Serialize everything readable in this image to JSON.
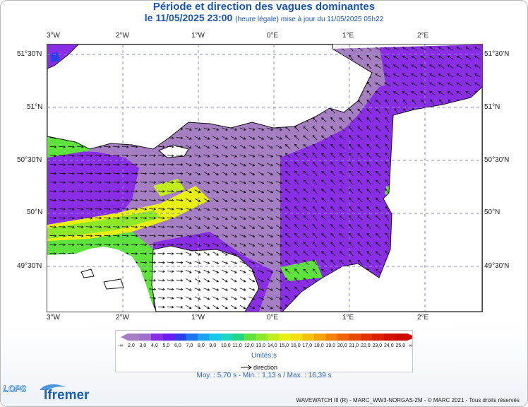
{
  "header": {
    "title": "Période et direction des vagues dominantes",
    "date": "le 11/05/2025 23:00",
    "note": "(heure légale) mise à jour du 11/05/2025 05h22"
  },
  "axes": {
    "lon_labels": [
      "3°W",
      "2°W",
      "1°W",
      "0°E",
      "1°E",
      "2°E"
    ],
    "lat_labels": [
      "51°30'N",
      "51°N",
      "50°30'N",
      "50°N",
      "49°30'N"
    ]
  },
  "legend": {
    "values": [
      "2,0",
      "3,0",
      "4,0",
      "5,0",
      "6,0",
      "7,0",
      "8,0",
      "9,0",
      "10,0",
      "11,0",
      "12,0",
      "13,0",
      "14,0",
      "15,0",
      "16,0",
      "17,0",
      "18,0",
      "19,0",
      "20,0",
      "21,0",
      "22,0",
      "23,0",
      "24,0",
      "25,0"
    ],
    "under_label": "-∞",
    "over_label": "∞",
    "colors": [
      "#a57fc2",
      "#9f6ed0",
      "#8a2ee6",
      "#6a1df0",
      "#2a3fe8",
      "#1e73ee",
      "#1aa4f0",
      "#18c8e8",
      "#1ed6c0",
      "#23d686",
      "#5ee23c",
      "#8ce829",
      "#c2ec1d",
      "#e8ef14",
      "#f4df12",
      "#f6c10c",
      "#f6a20a",
      "#f38308",
      "#ee6406",
      "#e84a04",
      "#e23203",
      "#db2002",
      "#d41001",
      "#cc0a00"
    ],
    "unit": "Unités:s",
    "direction_label": "direction"
  },
  "stats": "Moy. : 5,70 s   -   Min. : 1,13 s / Max. : 16,39 s",
  "footer": {
    "copyright": "WAVEWATCH III (R) - MARC_WW3-NORGAS-2M - © MARC 2021 - Tous droits réservés",
    "logo_left": "LOPS",
    "logo_right": "Ifremer"
  }
}
